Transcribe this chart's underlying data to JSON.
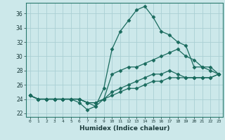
{
  "title": "",
  "xlabel": "Humidex (Indice chaleur)",
  "ylabel": "",
  "xlim": [
    -0.5,
    23.5
  ],
  "ylim": [
    21.5,
    37.5
  ],
  "xticks": [
    0,
    1,
    2,
    3,
    4,
    5,
    6,
    7,
    8,
    9,
    10,
    11,
    12,
    13,
    14,
    15,
    16,
    17,
    18,
    19,
    20,
    21,
    22,
    23
  ],
  "yticks": [
    22,
    24,
    26,
    28,
    30,
    32,
    34,
    36
  ],
  "background_color": "#cce8ea",
  "grid_color": "#aacfd4",
  "line_color": "#1a6b5e",
  "series": [
    [
      24.5,
      24.0,
      24.0,
      24.0,
      24.0,
      24.0,
      23.5,
      22.5,
      23.0,
      25.5,
      31.0,
      33.5,
      35.0,
      36.5,
      37.0,
      35.5,
      33.5,
      33.0,
      32.0,
      31.5,
      28.5,
      28.5,
      28.0,
      27.5
    ],
    [
      24.5,
      24.0,
      24.0,
      24.0,
      24.0,
      24.0,
      24.0,
      23.5,
      23.0,
      24.0,
      27.5,
      28.0,
      28.5,
      28.5,
      29.0,
      29.5,
      30.0,
      30.5,
      31.0,
      30.0,
      29.5,
      28.5,
      28.5,
      27.5
    ],
    [
      24.5,
      24.0,
      24.0,
      24.0,
      24.0,
      24.0,
      24.0,
      23.5,
      23.5,
      24.0,
      25.0,
      25.5,
      26.0,
      26.5,
      27.0,
      27.5,
      27.5,
      28.0,
      27.5,
      27.0,
      27.0,
      27.0,
      27.0,
      27.5
    ],
    [
      24.5,
      24.0,
      24.0,
      24.0,
      24.0,
      24.0,
      24.0,
      23.5,
      23.5,
      24.0,
      24.5,
      25.0,
      25.5,
      25.5,
      26.0,
      26.5,
      26.5,
      27.0,
      27.0,
      27.0,
      27.0,
      27.0,
      27.0,
      27.5
    ]
  ]
}
